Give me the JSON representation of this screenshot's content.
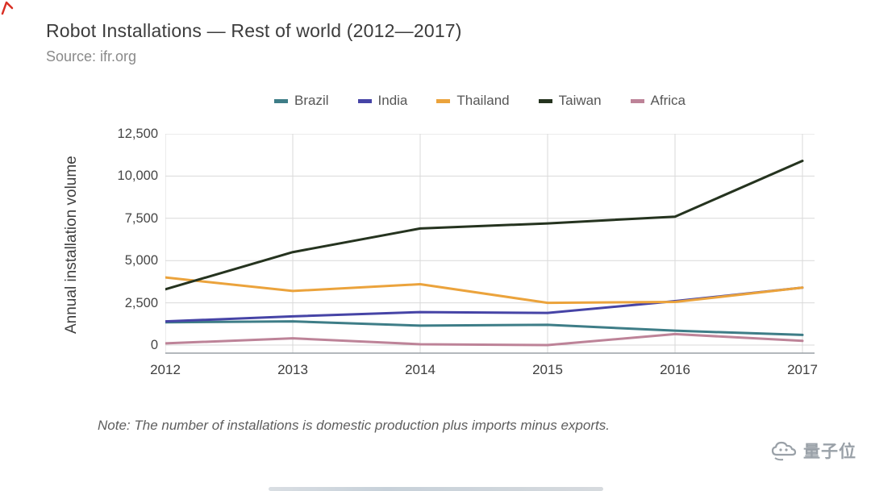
{
  "page": {
    "source": "Source: ifr.org",
    "note": "Note: The number of installations is domestic production plus imports minus exports.",
    "watermark": "量子位"
  },
  "chart_data": {
    "type": "line",
    "title": "Robot Installations — Rest of world (2012—2017)",
    "xlabel": "",
    "ylabel": "Annual installation volume",
    "x": [
      2012,
      2013,
      2014,
      2015,
      2016,
      2017
    ],
    "series": [
      {
        "name": "Brazil",
        "color": "#3e7d87",
        "values": [
          1350,
          1400,
          1150,
          1200,
          850,
          600
        ]
      },
      {
        "name": "India",
        "color": "#4644a6",
        "values": [
          1400,
          1700,
          1950,
          1900,
          2600,
          3400
        ]
      },
      {
        "name": "Thailand",
        "color": "#eba33c",
        "values": [
          4000,
          3200,
          3600,
          2500,
          2550,
          3400
        ]
      },
      {
        "name": "Taiwan",
        "color": "#25331f",
        "values": [
          3300,
          5500,
          6900,
          7200,
          7600,
          10900
        ]
      },
      {
        "name": "Africa",
        "color": "#bd8398",
        "values": [
          100,
          400,
          50,
          0,
          650,
          250
        ]
      }
    ],
    "ylim": [
      -600,
      12500
    ],
    "yticks": [
      0,
      2500,
      5000,
      7500,
      10000,
      12500
    ],
    "ytick_labels": [
      "0",
      "2,500",
      "5,000",
      "7,500",
      "10,000",
      "12,500"
    ],
    "grid": true,
    "legend_position": "top"
  }
}
